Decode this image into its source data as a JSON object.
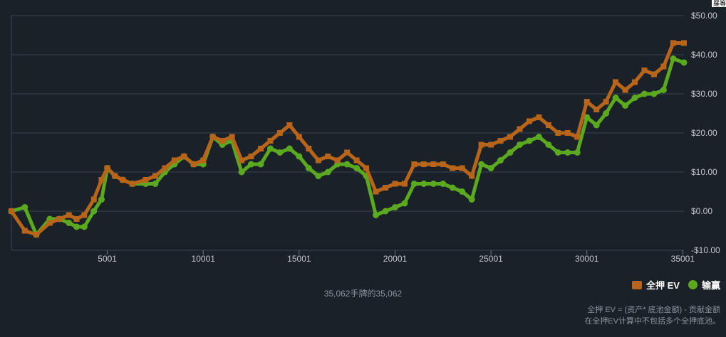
{
  "corner_text": "羅等",
  "hands_caption": "35,062手牌的35,062",
  "legend": [
    {
      "label": "全押 EV",
      "color": "#b8651a"
    },
    {
      "label": "输赢",
      "color": "#5aa91f"
    }
  ],
  "footnote": {
    "line1": "全押 EV = (资产* 底池金额) - 贡献金额",
    "line2": "在全押EV计算中不包括多个全押底池。"
  },
  "chart_data": {
    "type": "scatter",
    "title": "",
    "xlabel": "",
    "ylabel": "",
    "xlim": [
      1,
      35062
    ],
    "ylim": [
      -10,
      50
    ],
    "grid": true,
    "legend_position": "bottom-right",
    "x_ticks": [
      5001,
      10001,
      15001,
      20001,
      25001,
      30001,
      35001
    ],
    "x_tick_labels": [
      "5001",
      "10001",
      "15001",
      "20001",
      "25001",
      "30001",
      "35001"
    ],
    "y_ticks": [
      -10,
      0,
      10,
      20,
      30,
      40,
      50
    ],
    "y_tick_labels": [
      "-$10.00",
      "$0.00",
      "$10.00",
      "$20.00",
      "$30.00",
      "$40.00",
      "$50.00"
    ],
    "series": [
      {
        "name": "全押 EV",
        "color": "#b8651a",
        "x": [
          1,
          700,
          1300,
          2000,
          2500,
          3000,
          3400,
          3800,
          4300,
          4700,
          5000,
          5400,
          5800,
          6300,
          7000,
          7500,
          8000,
          8500,
          9000,
          9500,
          10001,
          10500,
          11000,
          11500,
          12000,
          12500,
          13000,
          13500,
          14000,
          14500,
          15001,
          15500,
          16000,
          16500,
          17000,
          17500,
          18000,
          18500,
          19000,
          19500,
          20001,
          20500,
          21000,
          21500,
          22000,
          22500,
          23000,
          23500,
          24000,
          24500,
          25001,
          25500,
          26000,
          26500,
          27000,
          27500,
          28000,
          28500,
          29000,
          29500,
          30001,
          30500,
          31000,
          31500,
          32000,
          32500,
          33000,
          33500,
          34000,
          34500,
          35062
        ],
        "values": [
          0,
          -5,
          -6,
          -3,
          -2,
          -1,
          -2,
          -1,
          3,
          8,
          11,
          9,
          8,
          7,
          8,
          9,
          11,
          13,
          14,
          12,
          13,
          19,
          18,
          19,
          13,
          14,
          16,
          18,
          20,
          22,
          19,
          16,
          13,
          14,
          13,
          15,
          13,
          11,
          5,
          6,
          7,
          7,
          12,
          12,
          12,
          12,
          11,
          11,
          9,
          17,
          17,
          18,
          19,
          21,
          23,
          24,
          22,
          20,
          20,
          19,
          28,
          26,
          28,
          33,
          31,
          33,
          36,
          35,
          37,
          43,
          43
        ]
      },
      {
        "name": "输赢",
        "color": "#5aa91f",
        "x": [
          1,
          700,
          1300,
          2000,
          2500,
          3000,
          3400,
          3800,
          4300,
          4700,
          5000,
          5400,
          5800,
          6300,
          7000,
          7500,
          8000,
          8500,
          9000,
          9500,
          10001,
          10500,
          11000,
          11500,
          12000,
          12500,
          13000,
          13500,
          14000,
          14500,
          15001,
          15500,
          16000,
          16500,
          17000,
          17500,
          18000,
          18500,
          19000,
          19500,
          20001,
          20500,
          21000,
          21500,
          22000,
          22500,
          23000,
          23500,
          24000,
          24500,
          25001,
          25500,
          26000,
          26500,
          27000,
          27500,
          28000,
          28500,
          29000,
          29500,
          30001,
          30500,
          31000,
          31500,
          32000,
          32500,
          33000,
          33500,
          34000,
          34500,
          35062
        ],
        "values": [
          0,
          1,
          -6,
          -2,
          -2,
          -3,
          -4,
          -4,
          0,
          3,
          11,
          9,
          8,
          7,
          7,
          7,
          10,
          12,
          14,
          12,
          12,
          19,
          17,
          18,
          10,
          12,
          12,
          16,
          15,
          16,
          14,
          11,
          9,
          10,
          12,
          12,
          11,
          9,
          -1,
          0,
          1,
          2,
          7,
          7,
          7,
          7,
          6,
          5,
          3,
          12,
          11,
          13,
          15,
          17,
          18,
          19,
          17,
          15,
          15,
          15,
          24,
          22,
          25,
          29,
          27,
          29,
          30,
          30,
          31,
          39,
          38
        ]
      }
    ]
  }
}
